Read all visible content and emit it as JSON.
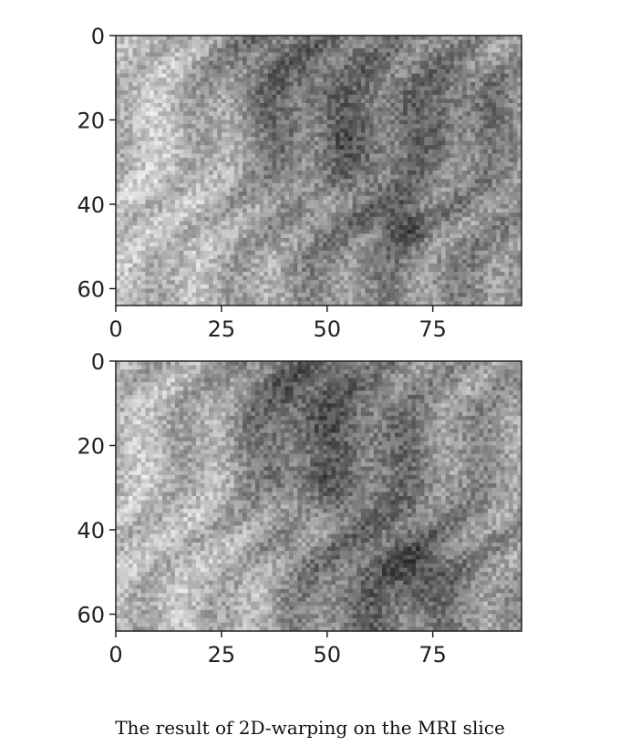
{
  "caption": "The result of 2D-warping on the MRI slice",
  "colors": {
    "axis": "#222222",
    "background": "#ffffff"
  },
  "chart_data": [
    {
      "type": "heatmap",
      "colormap": "gray",
      "grid": false,
      "title": "",
      "xlabel": "",
      "ylabel": "",
      "x_range": [
        0,
        96
      ],
      "y_range": [
        0,
        64
      ],
      "y_inverted": true,
      "x_ticks": [
        "0",
        "25",
        "50",
        "75"
      ],
      "y_ticks": [
        "0",
        "20",
        "40",
        "60"
      ],
      "features": [
        {
          "x": 10,
          "y": 30,
          "value": 0.85,
          "spread": 22
        },
        {
          "x": 50,
          "y": 25,
          "value": 0.32,
          "spread": 17
        },
        {
          "x": 38,
          "y": 8,
          "value": 0.3,
          "spread": 9
        },
        {
          "x": 48,
          "y": 38,
          "value": 0.9,
          "spread": 3
        },
        {
          "x": 67,
          "y": 44,
          "value": 0.05,
          "spread": 3
        },
        {
          "x": 53,
          "y": 25,
          "value": 0.2,
          "spread": 2
        },
        {
          "x": 80,
          "y": 15,
          "value": 0.4,
          "spread": 6
        },
        {
          "x": 85,
          "y": 50,
          "value": 0.55,
          "spread": 10
        }
      ]
    },
    {
      "type": "heatmap",
      "colormap": "gray",
      "grid": false,
      "title": "",
      "xlabel": "",
      "ylabel": "",
      "x_range": [
        0,
        96
      ],
      "y_range": [
        0,
        64
      ],
      "y_inverted": true,
      "x_ticks": [
        "0",
        "25",
        "50",
        "75"
      ],
      "y_ticks": [
        "0",
        "20",
        "40",
        "60"
      ],
      "features": [
        {
          "x": 10,
          "y": 35,
          "value": 0.82,
          "spread": 22
        },
        {
          "x": 45,
          "y": 20,
          "value": 0.3,
          "spread": 14
        },
        {
          "x": 44,
          "y": 8,
          "value": 0.2,
          "spread": 6
        },
        {
          "x": 46,
          "y": 37,
          "value": 0.9,
          "spread": 3
        },
        {
          "x": 70,
          "y": 49,
          "value": 0.08,
          "spread": 4
        },
        {
          "x": 47,
          "y": 27,
          "value": 0.15,
          "spread": 2
        },
        {
          "x": 40,
          "y": 27,
          "value": 0.25,
          "spread": 2
        },
        {
          "x": 60,
          "y": 50,
          "value": 0.35,
          "spread": 12
        }
      ]
    }
  ]
}
